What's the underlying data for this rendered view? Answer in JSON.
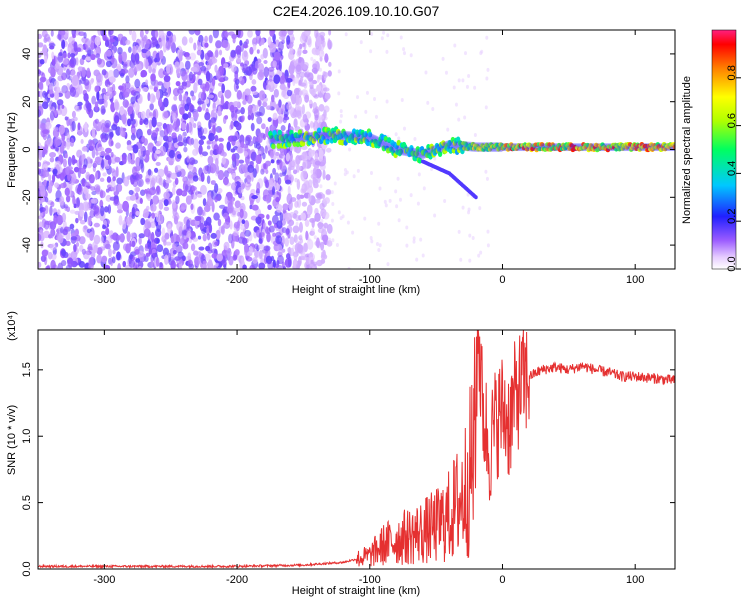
{
  "title": "C2E4.2026.109.10.10.G07",
  "chart_data": [
    {
      "type": "heatmap",
      "xlabel": "Height of straight line (km)",
      "ylabel": "Frequency (Hz)",
      "xlim": [
        -350,
        130
      ],
      "ylim": [
        -50,
        50
      ],
      "x_ticks": [
        -300,
        -200,
        -100,
        0,
        100
      ],
      "x_tick_labels": [
        "-300",
        "-200",
        "-100",
        "0",
        "100"
      ],
      "y_ticks": [
        -40,
        -20,
        0,
        20,
        40
      ],
      "y_tick_labels": [
        "-40",
        "-20",
        "0",
        "20",
        "40"
      ],
      "colorbar": {
        "label": "Normalized spectral amplitude",
        "range": [
          0,
          1
        ],
        "ticks": [
          0.0,
          0.2,
          0.4,
          0.6,
          0.8
        ],
        "tick_labels": [
          "0.0",
          "0.2",
          "0.4",
          "0.6",
          "0.8"
        ]
      },
      "description_values": {
        "noise_region_x": [
          -350,
          -150
        ],
        "signal_track_start_x": -175,
        "signal_frequency": [
          [
            -175,
            4
          ],
          [
            -150,
            5
          ],
          [
            -125,
            6
          ],
          [
            -100,
            5
          ],
          [
            -80,
            0
          ],
          [
            -60,
            -2
          ],
          [
            -40,
            2
          ],
          [
            -20,
            1
          ],
          [
            0,
            1
          ],
          [
            50,
            1
          ],
          [
            100,
            1
          ],
          [
            130,
            1
          ]
        ],
        "spur_track": [
          [
            -60,
            -5
          ],
          [
            -40,
            -10
          ],
          [
            -20,
            -20
          ]
        ]
      }
    },
    {
      "type": "line",
      "xlabel": "Height of straight line (km)",
      "ylabel": "SNR (10 * v/v)",
      "y_multiplier": "(x10⁴)",
      "xlim": [
        -350,
        130
      ],
      "ylim": [
        0,
        1.8
      ],
      "x_ticks": [
        -300,
        -200,
        -100,
        0,
        100
      ],
      "x_tick_labels": [
        "-300",
        "-200",
        "-100",
        "0",
        "100"
      ],
      "y_ticks": [
        0.0,
        0.5,
        1.0,
        1.5
      ],
      "y_tick_labels": [
        "0.0",
        "0.5",
        "1.0",
        "1.5"
      ],
      "color": "#e53030",
      "series": [
        {
          "x": [
            -350,
            -300,
            -250,
            -200,
            -150,
            -120,
            -100,
            -90,
            -80,
            -70,
            -60,
            -50,
            -40,
            -30,
            -25,
            -20,
            -18,
            -15,
            -10,
            -5,
            0,
            5,
            10,
            15,
            20,
            30,
            40,
            50,
            60,
            70,
            80,
            90,
            100,
            110,
            120,
            130
          ],
          "values": [
            0.02,
            0.02,
            0.02,
            0.02,
            0.03,
            0.05,
            0.1,
            0.18,
            0.22,
            0.25,
            0.28,
            0.32,
            0.4,
            0.55,
            0.7,
            1.0,
            1.75,
            1.2,
            0.9,
            1.1,
            1.2,
            1.1,
            1.3,
            1.4,
            1.45,
            1.5,
            1.52,
            1.5,
            1.53,
            1.5,
            1.48,
            1.45,
            1.45,
            1.44,
            1.43,
            1.42
          ]
        }
      ]
    }
  ]
}
